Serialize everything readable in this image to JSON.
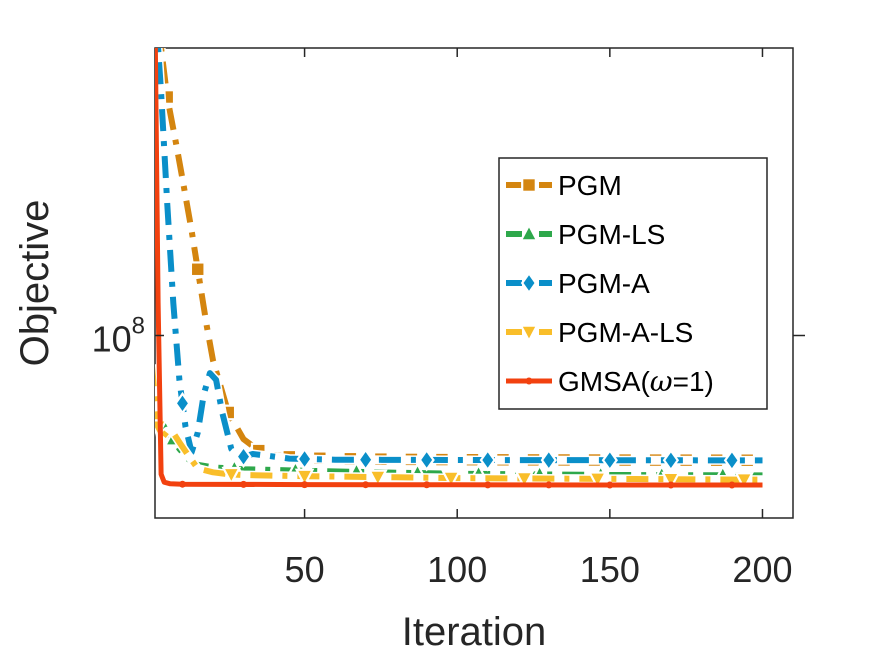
{
  "chart_data": {
    "type": "line",
    "xlabel": "Iteration",
    "ylabel": "Objective",
    "xlim": [
      1,
      210
    ],
    "x_ticks": [
      50,
      100,
      150,
      200
    ],
    "y_scale": "log",
    "y_ticks": [
      {
        "value": 100000000,
        "label_base": "10",
        "label_exp": "8"
      }
    ],
    "ylim": [
      36000000,
      500000000
    ],
    "grid": false,
    "legend_position": "top-right",
    "series": [
      {
        "name": "PGM",
        "color": "#D4850F",
        "line_style": "dash-dot",
        "marker": "square",
        "points": [
          [
            1,
            600000000
          ],
          [
            3,
            500000000
          ],
          [
            5,
            380000000
          ],
          [
            8,
            290000000
          ],
          [
            10,
            240000000
          ],
          [
            13,
            180000000
          ],
          [
            16,
            130000000
          ],
          [
            18,
            105000000
          ],
          [
            20,
            87000000
          ],
          [
            25,
            65000000
          ],
          [
            30,
            56000000
          ],
          [
            35,
            52500000
          ],
          [
            40,
            51200000
          ],
          [
            45,
            50700000
          ],
          [
            50,
            50400000
          ],
          [
            60,
            50200000
          ],
          [
            80,
            50000000
          ],
          [
            100,
            49900000
          ],
          [
            120,
            49850000
          ],
          [
            150,
            49800000
          ],
          [
            200,
            49750000
          ]
        ],
        "marker_x": [
          5,
          15,
          25,
          35,
          45,
          55,
          65,
          75,
          85,
          95,
          105,
          115,
          125,
          135,
          145,
          155,
          165,
          175,
          185,
          195
        ]
      },
      {
        "name": "PGM-LS",
        "color": "#2EA84B",
        "line_style": "dash-dot",
        "marker": "triangle-up",
        "points": [
          [
            3,
            62000000
          ],
          [
            5,
            58000000
          ],
          [
            7,
            56000000
          ],
          [
            9,
            53000000
          ],
          [
            12,
            50000000
          ],
          [
            15,
            48500000
          ],
          [
            20,
            47800000
          ],
          [
            30,
            47300000
          ],
          [
            50,
            46900000
          ],
          [
            80,
            46400000
          ],
          [
            100,
            46100000
          ],
          [
            150,
            45800000
          ],
          [
            200,
            45700000
          ]
        ],
        "marker_x": [
          7,
          27,
          47,
          67,
          87,
          107,
          127,
          147,
          167,
          187
        ]
      },
      {
        "name": "PGM-A",
        "color": "#0A8FC9",
        "line_style": "dash-dot",
        "marker": "diamond",
        "points": [
          [
            1,
            600000000
          ],
          [
            2,
            500000000
          ],
          [
            3,
            390000000
          ],
          [
            5,
            210000000
          ],
          [
            7,
            120000000
          ],
          [
            9,
            78000000
          ],
          [
            11,
            60000000
          ],
          [
            13,
            52000000
          ],
          [
            15,
            58000000
          ],
          [
            17,
            72000000
          ],
          [
            19,
            81000000
          ],
          [
            21,
            78000000
          ],
          [
            23,
            65000000
          ],
          [
            26,
            53000000
          ],
          [
            29,
            50500000
          ],
          [
            33,
            51500000
          ],
          [
            38,
            51000000
          ],
          [
            45,
            50200000
          ],
          [
            60,
            49900000
          ],
          [
            100,
            49800000
          ],
          [
            150,
            49750000
          ],
          [
            200,
            49700000
          ]
        ],
        "marker_x": [
          10,
          30,
          50,
          70,
          90,
          110,
          130,
          150,
          170,
          190
        ]
      },
      {
        "name": "PGM-A-LS",
        "color": "#F9BE2A",
        "line_style": "dash-dot",
        "marker": "triangle-down",
        "points": [
          [
            0,
            85000000
          ],
          [
            1,
            70000000
          ],
          [
            2,
            60000000
          ],
          [
            3,
            56000000
          ],
          [
            5,
            58500000
          ],
          [
            7,
            58000000
          ],
          [
            9,
            55000000
          ],
          [
            12,
            51000000
          ],
          [
            15,
            47500000
          ],
          [
            20,
            46500000
          ],
          [
            25,
            46000000
          ],
          [
            30,
            45800000
          ],
          [
            50,
            45500000
          ],
          [
            80,
            45200000
          ],
          [
            100,
            45000000
          ],
          [
            150,
            44800000
          ],
          [
            200,
            44600000
          ]
        ],
        "marker_x": [
          2,
          26,
          50,
          74,
          98,
          122,
          146,
          170,
          194
        ]
      },
      {
        "name": "GMSA(ω=1)",
        "name_prefix": "GMSA(",
        "name_symbol": "ω",
        "name_suffix": "=1)",
        "color": "#F2410F",
        "line_style": "solid",
        "marker": "point",
        "points": [
          [
            1,
            600000000
          ],
          [
            2,
            120000000
          ],
          [
            3,
            46000000
          ],
          [
            4,
            44000000
          ],
          [
            6,
            43600000
          ],
          [
            10,
            43500000
          ],
          [
            50,
            43400000
          ],
          [
            100,
            43350000
          ],
          [
            150,
            43300000
          ],
          [
            200,
            43300000
          ]
        ],
        "marker_x": [
          10,
          30,
          50,
          70,
          90,
          110,
          130,
          150,
          170,
          190
        ]
      }
    ]
  }
}
